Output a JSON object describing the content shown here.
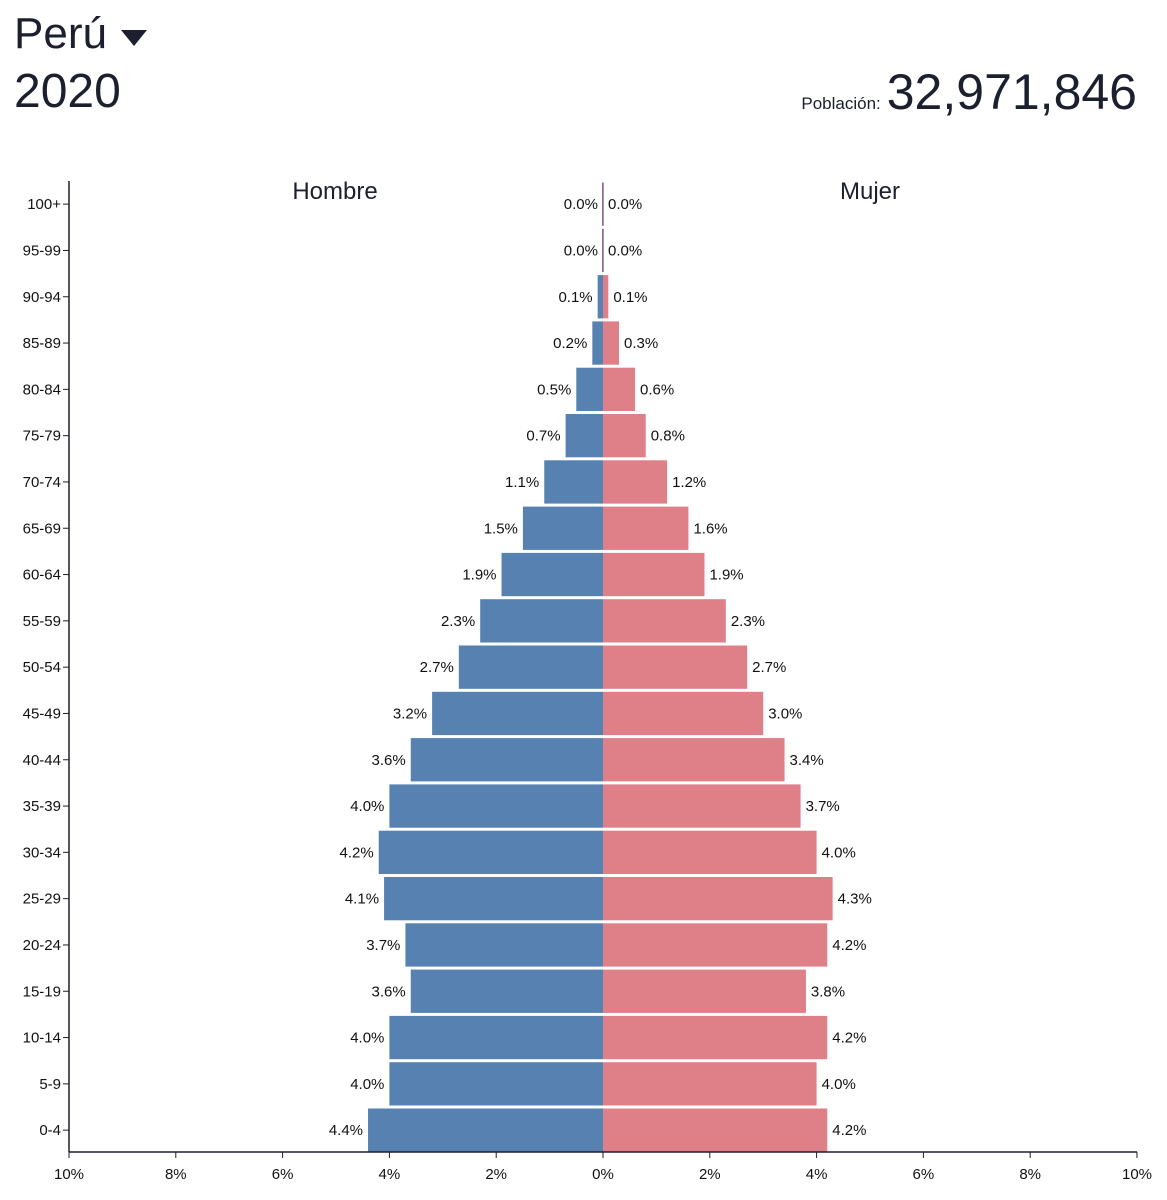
{
  "header": {
    "country": "Perú",
    "year": "2020",
    "population_label": "Población:",
    "population_value": "32,971,846"
  },
  "colors": {
    "male": "#5681b0",
    "female": "#df7f87",
    "axis": "#1b1f2e"
  },
  "icons": {
    "dropdown": "caret-down-icon"
  },
  "chart_data": {
    "type": "bar",
    "orientation": "horizontal-population-pyramid",
    "categories": [
      "100+",
      "95-99",
      "90-94",
      "85-89",
      "80-84",
      "75-79",
      "70-74",
      "65-69",
      "60-64",
      "55-59",
      "50-54",
      "45-49",
      "40-44",
      "35-39",
      "30-34",
      "25-29",
      "20-24",
      "15-19",
      "10-14",
      "5-9",
      "0-4"
    ],
    "series": [
      {
        "name": "Hombre",
        "values": [
          0.0,
          0.0,
          0.1,
          0.2,
          0.5,
          0.7,
          1.1,
          1.5,
          1.9,
          2.3,
          2.7,
          3.2,
          3.6,
          4.0,
          4.2,
          4.1,
          3.7,
          3.6,
          4.0,
          4.0,
          4.4
        ],
        "labels": [
          "0.0%",
          "0.0%",
          "0.1%",
          "0.2%",
          "0.5%",
          "0.7%",
          "1.1%",
          "1.5%",
          "1.9%",
          "2.3%",
          "2.7%",
          "3.2%",
          "3.6%",
          "4.0%",
          "4.2%",
          "4.1%",
          "3.7%",
          "3.6%",
          "4.0%",
          "4.0%",
          "4.4%"
        ]
      },
      {
        "name": "Mujer",
        "values": [
          0.0,
          0.0,
          0.1,
          0.3,
          0.6,
          0.8,
          1.2,
          1.6,
          1.9,
          2.3,
          2.7,
          3.0,
          3.4,
          3.7,
          4.0,
          4.3,
          4.2,
          3.8,
          4.2,
          4.0,
          4.2
        ],
        "labels": [
          "0.0%",
          "0.0%",
          "0.1%",
          "0.3%",
          "0.6%",
          "0.8%",
          "1.2%",
          "1.6%",
          "1.9%",
          "2.3%",
          "2.7%",
          "3.0%",
          "3.4%",
          "3.7%",
          "4.0%",
          "4.3%",
          "4.2%",
          "3.8%",
          "4.2%",
          "4.0%",
          "4.2%"
        ]
      }
    ],
    "x_ticks": [
      -10,
      -8,
      -6,
      -4,
      -2,
      0,
      2,
      4,
      6,
      8,
      10
    ],
    "x_tick_labels": [
      "10%",
      "8%",
      "6%",
      "4%",
      "2%",
      "0%",
      "2%",
      "4%",
      "6%",
      "8%",
      "10%"
    ],
    "xlim": [
      -10,
      10
    ],
    "xlabel": "",
    "ylabel": "",
    "legend": "side labels at top"
  }
}
